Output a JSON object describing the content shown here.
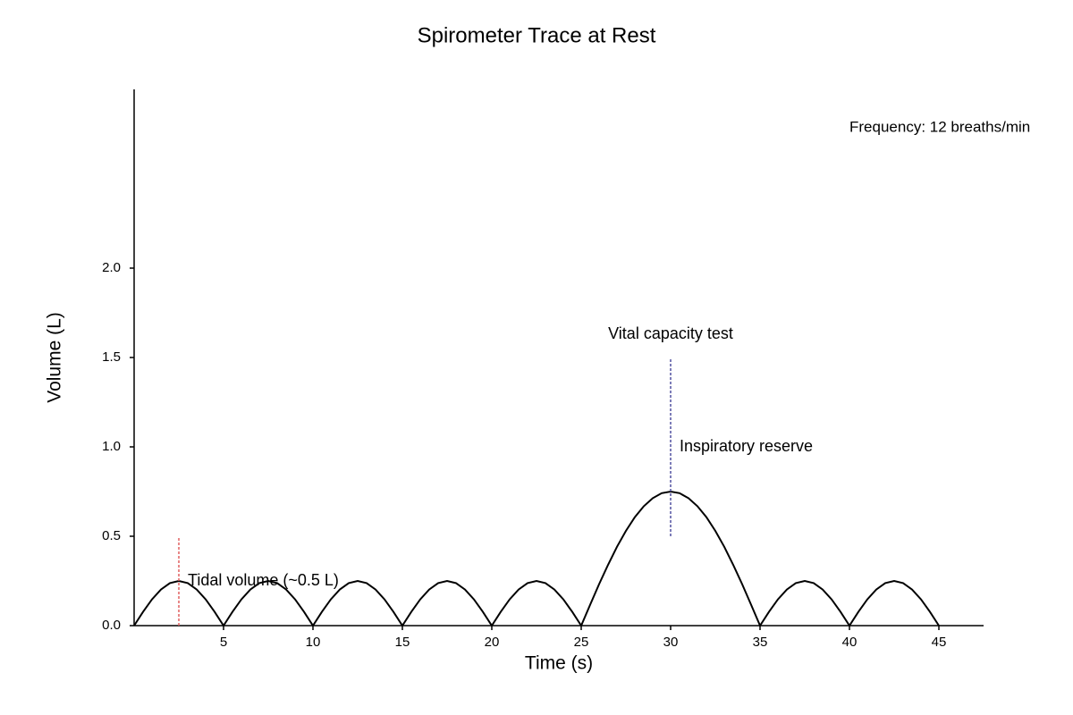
{
  "chart_data": {
    "type": "line",
    "title": "Spirometer Trace at Rest",
    "xlabel": "Time (s)",
    "ylabel": "Volume (L)",
    "x": [
      0,
      0.5,
      1,
      1.5,
      2,
      2.5,
      3,
      3.5,
      4,
      4.5,
      5,
      5.5,
      6,
      6.5,
      7,
      7.5,
      8,
      8.5,
      9,
      9.5,
      10,
      10.5,
      11,
      11.5,
      12,
      12.5,
      13,
      13.5,
      14,
      14.5,
      15,
      15.5,
      16,
      16.5,
      17,
      17.5,
      18,
      18.5,
      19,
      19.5,
      20,
      20.5,
      21,
      21.5,
      22,
      22.5,
      23,
      23.5,
      24,
      24.5,
      25,
      25.5,
      26,
      26.5,
      27,
      27.5,
      28,
      28.5,
      29,
      29.5,
      30,
      30.5,
      31,
      31.5,
      32,
      32.5,
      33,
      33.5,
      34,
      34.5,
      35,
      35.5,
      36,
      36.5,
      37,
      37.5,
      38,
      38.5,
      39,
      39.5,
      40,
      40.5,
      41,
      41.5,
      42,
      42.5,
      43,
      43.5,
      44,
      44.5,
      45
    ],
    "values": [
      0,
      0.077,
      0.147,
      0.202,
      0.238,
      0.25,
      0.238,
      0.202,
      0.147,
      0.077,
      0,
      0.077,
      0.147,
      0.202,
      0.238,
      0.25,
      0.238,
      0.202,
      0.147,
      0.077,
      0,
      0.077,
      0.147,
      0.202,
      0.238,
      0.25,
      0.238,
      0.202,
      0.147,
      0.077,
      0,
      0.077,
      0.147,
      0.202,
      0.238,
      0.25,
      0.238,
      0.202,
      0.147,
      0.077,
      0,
      0.077,
      0.147,
      0.202,
      0.238,
      0.25,
      0.238,
      0.202,
      0.147,
      0.077,
      0,
      0.117,
      0.232,
      0.34,
      0.441,
      0.53,
      0.607,
      0.668,
      0.713,
      0.741,
      0.75,
      0.741,
      0.713,
      0.668,
      0.607,
      0.53,
      0.441,
      0.34,
      0.232,
      0.117,
      0,
      0.077,
      0.147,
      0.202,
      0.238,
      0.25,
      0.238,
      0.202,
      0.147,
      0.077,
      0,
      0.077,
      0.147,
      0.202,
      0.238,
      0.25,
      0.238,
      0.202,
      0.147,
      0.077,
      0
    ],
    "color": "#000000",
    "xlim": [
      0,
      47.5
    ],
    "ylim": [
      0,
      3.0
    ],
    "xticks": [
      5,
      10,
      15,
      20,
      25,
      30,
      35,
      40,
      45
    ],
    "yticks": [
      {
        "value": 0,
        "label": "0.0"
      },
      0.5,
      {
        "value": 1,
        "label": "1.0"
      },
      1.5,
      {
        "value": 2,
        "label": "2.0"
      }
    ],
    "reference_lines": [
      {
        "x": 2.5,
        "y": [
          0,
          0.5
        ],
        "color": "#e06060"
      },
      {
        "x": 30,
        "y": [
          0.5,
          1.5
        ],
        "color": "#5050a0"
      }
    ],
    "annotations": [
      {
        "text": "Tidal volume (~0.5 L)",
        "x": 3,
        "y": 0.25,
        "color": "#cc0000",
        "anchor": "start"
      },
      {
        "text": "Vital capacity test",
        "x": 30,
        "y": 1.63,
        "color": "#000000",
        "anchor": "middle"
      },
      {
        "text": "Inspiratory reserve",
        "x": 30.5,
        "y": 1.0,
        "color": "#0000cc",
        "anchor": "start"
      }
    ],
    "note": "Frequency: 12 breaths/min"
  }
}
